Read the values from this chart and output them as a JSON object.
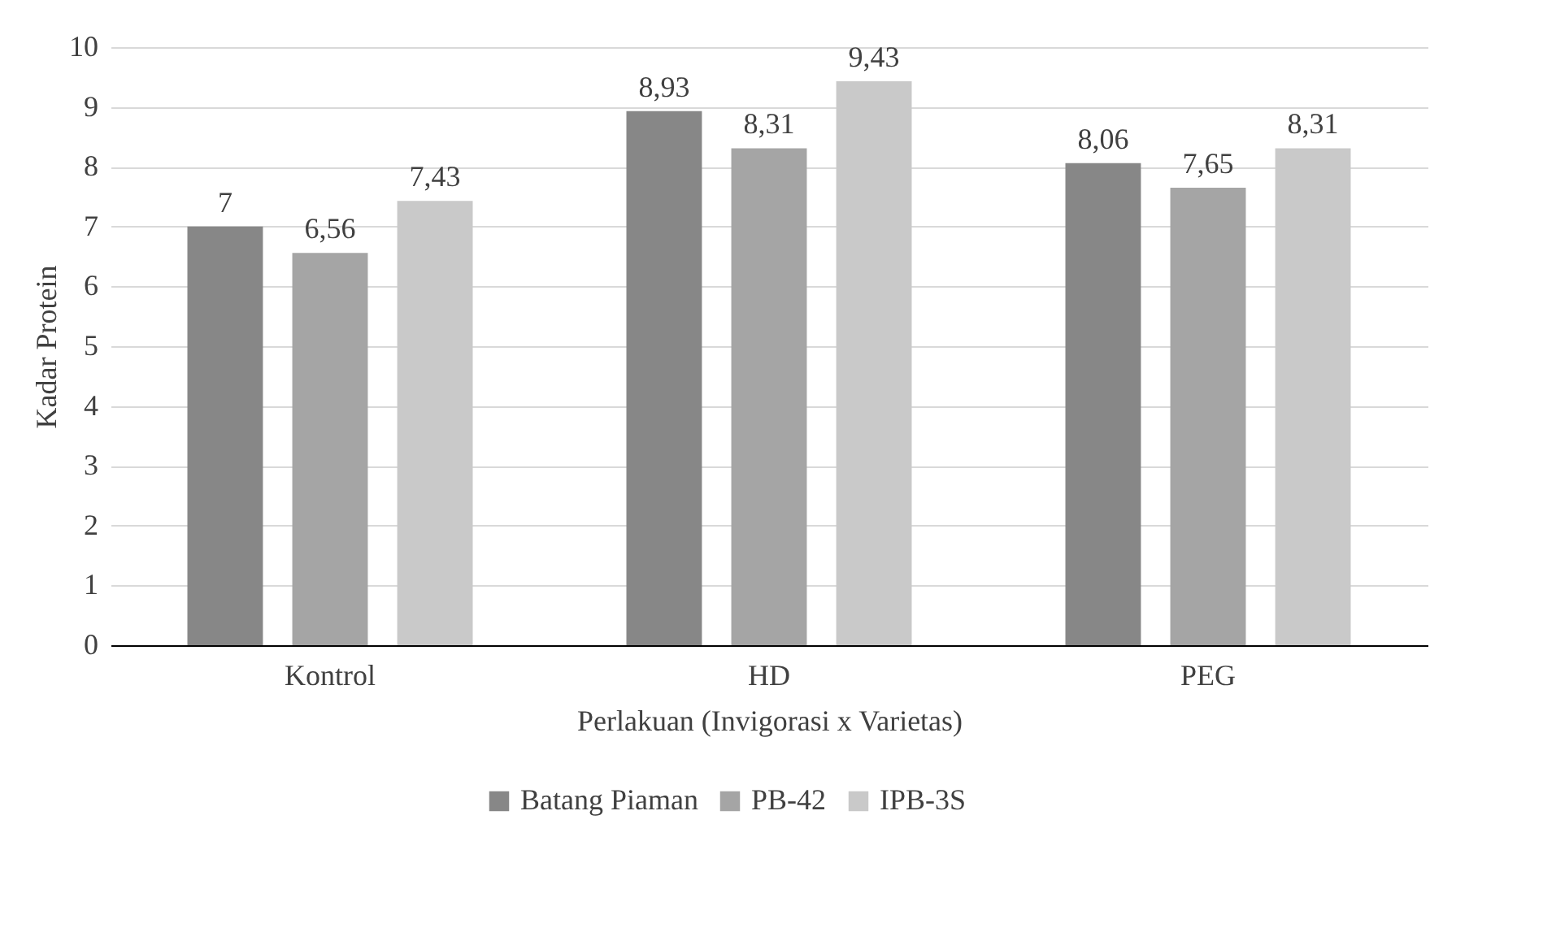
{
  "chart_data": {
    "type": "bar",
    "xlabel": "Perlakuan (Invigorasi x Varietas)",
    "ylabel": "Kadar Protein",
    "categories": [
      "Kontrol",
      "HD",
      "PEG"
    ],
    "series": [
      {
        "name": "Batang Piaman",
        "color": "#878787",
        "values": [
          7,
          8.93,
          8.06
        ],
        "value_labels": [
          "7",
          "8,93",
          "8,06"
        ]
      },
      {
        "name": "PB-42",
        "color": "#a5a5a5",
        "values": [
          6.56,
          8.31,
          7.65
        ],
        "value_labels": [
          "6,56",
          "8,31",
          "7,65"
        ]
      },
      {
        "name": "IPB-3S",
        "color": "#c9c9c9",
        "values": [
          7.43,
          9.43,
          8.31
        ],
        "value_labels": [
          "7,43",
          "9,43",
          "8,31"
        ]
      }
    ],
    "ylim": [
      0,
      10
    ],
    "yticks": [
      0,
      1,
      2,
      3,
      4,
      5,
      6,
      7,
      8,
      9,
      10
    ],
    "grid": "y",
    "legend": "bottom"
  }
}
